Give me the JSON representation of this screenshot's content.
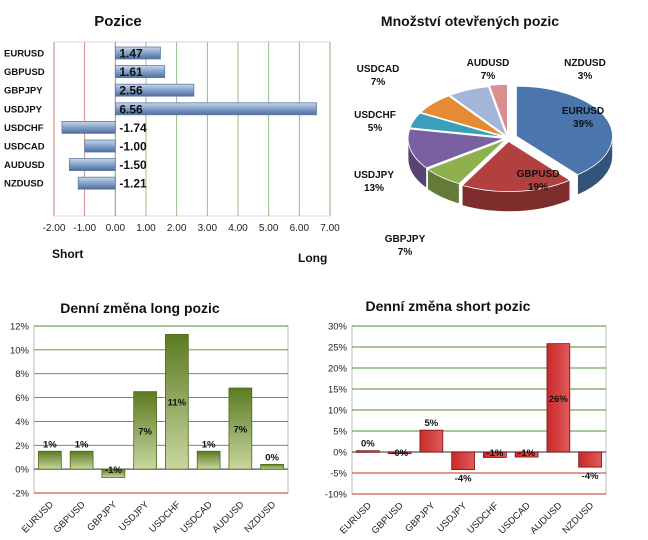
{
  "colors": {
    "long_axis": "#3d7a1e",
    "short_axis": "#b01a1a",
    "green_bar": "#7f9a40",
    "red_bar": "#d23a3a",
    "blue_bar": "#7f9dc6",
    "grid_green": "#4f8f2f",
    "grid_red": "#c03030"
  },
  "chart_data": [
    {
      "type": "bar",
      "orientation": "horizontal",
      "title": "Pozice",
      "categories": [
        "EURUSD",
        "GBPUSD",
        "GBPJPY",
        "USDJPY",
        "USDCHF",
        "USDCAD",
        "AUDUSD",
        "NZDUSD"
      ],
      "values": [
        1.47,
        1.61,
        2.56,
        6.56,
        -1.74,
        -1.0,
        -1.5,
        -1.21
      ],
      "value_labels": [
        "1.47",
        "1.61",
        "2.56",
        "6.56",
        "-1.74",
        "-1.00",
        "-1.50",
        "-1.21"
      ],
      "xlim": [
        -2.0,
        7.0
      ],
      "ticks": [
        -2,
        -1,
        0,
        1,
        2,
        3,
        4,
        5,
        6,
        7
      ],
      "tick_labels": [
        "-2.00",
        "-1.00",
        "0.00",
        "1.00",
        "2.00",
        "3.00",
        "4.00",
        "5.00",
        "6.00",
        "7.00"
      ],
      "left_label": "Short",
      "right_label": "Long",
      "grid": true
    },
    {
      "type": "pie",
      "title": "Množství otevřených pozic",
      "slices": [
        {
          "label": "EURUSD",
          "value": 39,
          "text": "39%",
          "color": "#4a76ad"
        },
        {
          "label": "GBPUSD",
          "value": 19,
          "text": "19%",
          "color": "#b3403e"
        },
        {
          "label": "GBPJPY",
          "value": 7,
          "text": "7%",
          "color": "#8fb04e"
        },
        {
          "label": "USDJPY",
          "value": 13,
          "text": "13%",
          "color": "#7960a0"
        },
        {
          "label": "USDCHF",
          "value": 5,
          "text": "5%",
          "color": "#3a9fbb"
        },
        {
          "label": "USDCAD",
          "value": 7,
          "text": "7%",
          "color": "#e58a35"
        },
        {
          "label": "AUDUSD",
          "value": 7,
          "text": "7%",
          "color": "#a3b6d8"
        },
        {
          "label": "NZDUSD",
          "value": 3,
          "text": "3%",
          "color": "#d88f8d"
        }
      ]
    },
    {
      "type": "bar",
      "title": "Denní změna long pozic",
      "categories": [
        "EURUSD",
        "GBPUSD",
        "GBPJPY",
        "USDJPY",
        "USDCHF",
        "USDCAD",
        "AUDUSD",
        "NZDUSD"
      ],
      "values": [
        1.5,
        1.5,
        -0.7,
        6.5,
        11.3,
        1.5,
        6.8,
        0.4
      ],
      "value_labels": [
        "1%",
        "1%",
        "-1%",
        "7%",
        "11%",
        "1%",
        "7%",
        "0%"
      ],
      "ylim": [
        -2,
        12
      ],
      "ticks": [
        -2,
        0,
        2,
        4,
        6,
        8,
        10,
        12
      ],
      "tick_labels": [
        "-2%",
        "0%",
        "2%",
        "4%",
        "6%",
        "8%",
        "10%",
        "12%"
      ],
      "grid": true
    },
    {
      "type": "bar",
      "title": "Denní změna short pozic",
      "categories": [
        "EURUSD",
        "GBPUSD",
        "GBPJPY",
        "USDJPY",
        "USDCHF",
        "USDCAD",
        "AUDUSD",
        "NZDUSD"
      ],
      "values": [
        0.3,
        -0.4,
        5.2,
        -4.2,
        -1.3,
        -1.2,
        25.8,
        -3.6
      ],
      "value_labels": [
        "0%",
        "-0%",
        "5%",
        "-4%",
        "-1%",
        "-1%",
        "26%",
        "-4%"
      ],
      "ylim": [
        -10,
        30
      ],
      "ticks": [
        -10,
        -5,
        0,
        5,
        10,
        15,
        20,
        25,
        30
      ],
      "tick_labels": [
        "-10%",
        "-5%",
        "0%",
        "5%",
        "10%",
        "15%",
        "20%",
        "25%",
        "30%"
      ],
      "grid": true
    }
  ]
}
